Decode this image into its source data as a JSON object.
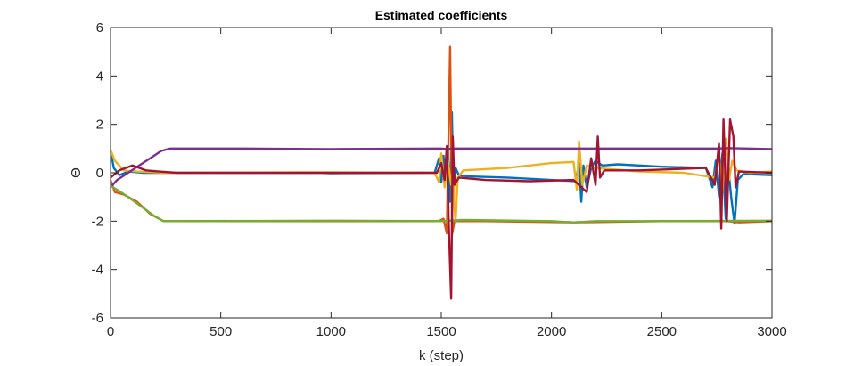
{
  "chart_data": {
    "type": "line",
    "title": "Estimated coefficients",
    "xlabel": "k (step)",
    "ylabel": "Θ",
    "xlim": [
      0,
      3000
    ],
    "ylim": [
      -6,
      6
    ],
    "xticks": [
      0,
      500,
      1000,
      1500,
      2000,
      2500,
      3000
    ],
    "yticks": [
      -6,
      -4,
      -2,
      0,
      2,
      4,
      6
    ],
    "grid": false,
    "legend": "none",
    "series": [
      {
        "color": "#0072BD",
        "points": [
          [
            0,
            0.9
          ],
          [
            15,
            0.2
          ],
          [
            40,
            -0.1
          ],
          [
            80,
            0.05
          ],
          [
            150,
            0.0
          ],
          [
            230,
            0.0
          ],
          [
            260,
            0.0
          ],
          [
            950,
            0.0
          ],
          [
            1000,
            -0.02
          ],
          [
            1470,
            0.0
          ],
          [
            1490,
            0.6
          ],
          [
            1500,
            -0.4
          ],
          [
            1510,
            0.7
          ],
          [
            1520,
            -0.3
          ],
          [
            1530,
            0.9
          ],
          [
            1540,
            -1.2
          ],
          [
            1548,
            2.5
          ],
          [
            1555,
            -0.8
          ],
          [
            1565,
            0.2
          ],
          [
            1580,
            -0.1
          ],
          [
            1620,
            -0.15
          ],
          [
            1800,
            -0.2
          ],
          [
            2000,
            -0.3
          ],
          [
            2110,
            -0.35
          ],
          [
            2125,
            0.4
          ],
          [
            2135,
            -1.2
          ],
          [
            2145,
            0.3
          ],
          [
            2160,
            -0.6
          ],
          [
            2180,
            0.2
          ],
          [
            2200,
            0.5
          ],
          [
            2230,
            0.3
          ],
          [
            2300,
            0.35
          ],
          [
            2500,
            0.25
          ],
          [
            2700,
            0.2
          ],
          [
            2730,
            -0.6
          ],
          [
            2745,
            0.5
          ],
          [
            2760,
            -1.0
          ],
          [
            2775,
            0.8
          ],
          [
            2790,
            -1.9
          ],
          [
            2800,
            0.4
          ],
          [
            2815,
            -1.0
          ],
          [
            2830,
            -2.1
          ],
          [
            2845,
            -0.3
          ],
          [
            2870,
            -0.05
          ],
          [
            3000,
            -0.1
          ]
        ]
      },
      {
        "color": "#D95319",
        "points": [
          [
            0,
            -0.3
          ],
          [
            20,
            -0.8
          ],
          [
            60,
            -0.9
          ],
          [
            120,
            -1.2
          ],
          [
            180,
            -1.7
          ],
          [
            240,
            -2.0
          ],
          [
            300,
            -2.0
          ],
          [
            1000,
            -2.0
          ],
          [
            1490,
            -2.0
          ],
          [
            1510,
            -1.9
          ],
          [
            1525,
            -2.5
          ],
          [
            1540,
            5.2
          ],
          [
            1550,
            -2.5
          ],
          [
            1560,
            -2.0
          ],
          [
            1700,
            -2.0
          ],
          [
            2100,
            -2.05
          ],
          [
            2500,
            -2.0
          ],
          [
            2800,
            -2.0
          ],
          [
            2850,
            -2.05
          ],
          [
            3000,
            -2.0
          ]
        ]
      },
      {
        "color": "#EDB120",
        "points": [
          [
            0,
            0.95
          ],
          [
            20,
            0.5
          ],
          [
            60,
            0.1
          ],
          [
            120,
            0.05
          ],
          [
            250,
            0.0
          ],
          [
            900,
            0.02
          ],
          [
            1470,
            0.0
          ],
          [
            1490,
            -0.4
          ],
          [
            1500,
            0.8
          ],
          [
            1515,
            -0.6
          ],
          [
            1530,
            0.5
          ],
          [
            1545,
            -0.5
          ],
          [
            1555,
            0.3
          ],
          [
            1560,
            -1.5
          ],
          [
            1565,
            -2.0
          ],
          [
            1575,
            -0.2
          ],
          [
            1600,
            0.1
          ],
          [
            1800,
            0.2
          ],
          [
            2000,
            0.4
          ],
          [
            2100,
            0.45
          ],
          [
            2115,
            -0.7
          ],
          [
            2125,
            1.3
          ],
          [
            2140,
            -0.5
          ],
          [
            2160,
            0.3
          ],
          [
            2200,
            0.2
          ],
          [
            2400,
            0.05
          ],
          [
            2600,
            0.0
          ],
          [
            2740,
            -0.2
          ],
          [
            2760,
            0.8
          ],
          [
            2775,
            -0.8
          ],
          [
            2790,
            1.4
          ],
          [
            2805,
            -0.3
          ],
          [
            2820,
            0.5
          ],
          [
            2840,
            0.1
          ],
          [
            2900,
            0.0
          ],
          [
            3000,
            0.05
          ]
        ]
      },
      {
        "color": "#7E2F8E",
        "points": [
          [
            0,
            -0.6
          ],
          [
            30,
            -0.3
          ],
          [
            80,
            0.0
          ],
          [
            130,
            0.3
          ],
          [
            180,
            0.6
          ],
          [
            230,
            0.9
          ],
          [
            270,
            1.0
          ],
          [
            600,
            1.0
          ],
          [
            1000,
            0.98
          ],
          [
            1500,
            1.0
          ],
          [
            1530,
            0.98
          ],
          [
            1560,
            1.0
          ],
          [
            2000,
            1.0
          ],
          [
            2500,
            1.0
          ],
          [
            2750,
            1.0
          ],
          [
            2800,
            1.02
          ],
          [
            3000,
            0.98
          ]
        ]
      },
      {
        "color": "#77AC30",
        "points": [
          [
            0,
            -0.55
          ],
          [
            30,
            -0.7
          ],
          [
            80,
            -1.0
          ],
          [
            140,
            -1.4
          ],
          [
            200,
            -1.8
          ],
          [
            240,
            -2.0
          ],
          [
            300,
            -2.0
          ],
          [
            1000,
            -1.98
          ],
          [
            1500,
            -2.0
          ],
          [
            1600,
            -1.95
          ],
          [
            2000,
            -2.0
          ],
          [
            2100,
            -2.05
          ],
          [
            2200,
            -2.0
          ],
          [
            2500,
            -2.0
          ],
          [
            3000,
            -1.98
          ]
        ]
      },
      {
        "color": "#A2142F",
        "points": [
          [
            0,
            -0.2
          ],
          [
            40,
            0.1
          ],
          [
            100,
            0.3
          ],
          [
            160,
            0.1
          ],
          [
            220,
            0.05
          ],
          [
            300,
            0.0
          ],
          [
            1000,
            0.0
          ],
          [
            1480,
            0.0
          ],
          [
            1500,
            0.4
          ],
          [
            1515,
            -0.3
          ],
          [
            1525,
            1.1
          ],
          [
            1535,
            -2.5
          ],
          [
            1545,
            -5.2
          ],
          [
            1552,
            1.5
          ],
          [
            1560,
            -0.5
          ],
          [
            1580,
            -0.2
          ],
          [
            1700,
            -0.3
          ],
          [
            1900,
            -0.35
          ],
          [
            2100,
            -0.3
          ],
          [
            2160,
            -0.8
          ],
          [
            2180,
            0.6
          ],
          [
            2200,
            -0.5
          ],
          [
            2210,
            1.5
          ],
          [
            2220,
            -0.2
          ],
          [
            2240,
            0.1
          ],
          [
            2400,
            0.1
          ],
          [
            2700,
            0.2
          ],
          [
            2740,
            -0.5
          ],
          [
            2760,
            1.2
          ],
          [
            2770,
            -2.3
          ],
          [
            2780,
            2.2
          ],
          [
            2795,
            -2.0
          ],
          [
            2810,
            2.2
          ],
          [
            2825,
            1.5
          ],
          [
            2835,
            -0.6
          ],
          [
            2850,
            0.05
          ],
          [
            3000,
            0.0
          ]
        ]
      }
    ]
  }
}
